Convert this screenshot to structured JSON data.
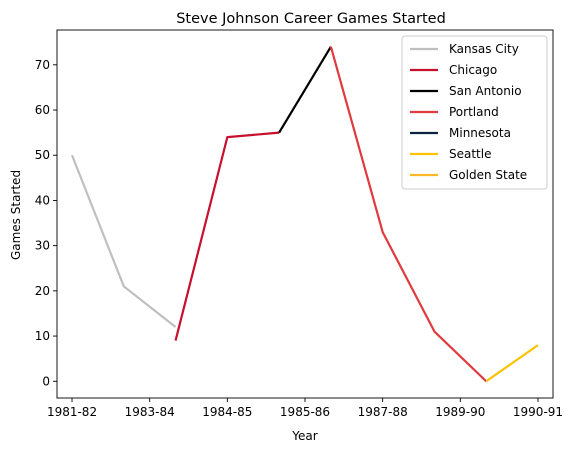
{
  "chart_data": {
    "type": "line",
    "title": "Steve Johnson  Career Games Started",
    "xlabel": "Year",
    "ylabel": "Games Started",
    "x_ticks": [
      "1981-82",
      "1983-84",
      "1984-85",
      "1985-86",
      "1987-88",
      "1989-90",
      "1990-91"
    ],
    "y_ticks": [
      0,
      10,
      20,
      30,
      40,
      50,
      60,
      70
    ],
    "xlim": [
      -0.29,
      9.29
    ],
    "ylim": [
      -3.7,
      77.7
    ],
    "grid": false,
    "legend_position": "top-right",
    "series": [
      {
        "name": "Kansas City",
        "color": "#bfbfbf",
        "x": [
          0,
          1,
          2
        ],
        "y": [
          50,
          21,
          12
        ]
      },
      {
        "name": "Chicago",
        "color": "#c8102e",
        "x": [
          2,
          3,
          4
        ],
        "y": [
          9,
          54,
          55
        ]
      },
      {
        "name": "San Antonio",
        "color": "#000000",
        "x": [
          4,
          5
        ],
        "y": [
          55,
          74
        ]
      },
      {
        "name": "Portland",
        "color": "#e03a3e",
        "x": [
          5,
          6,
          7,
          8
        ],
        "y": [
          74,
          33,
          11,
          0
        ]
      },
      {
        "name": "Minnesota",
        "color": "#0c2340",
        "x": [],
        "y": []
      },
      {
        "name": "Seattle",
        "color": "#ffc200",
        "x": [
          8,
          9
        ],
        "y": [
          0,
          8
        ]
      },
      {
        "name": "Golden State",
        "color": "#fdb927",
        "x": [],
        "y": []
      }
    ]
  }
}
